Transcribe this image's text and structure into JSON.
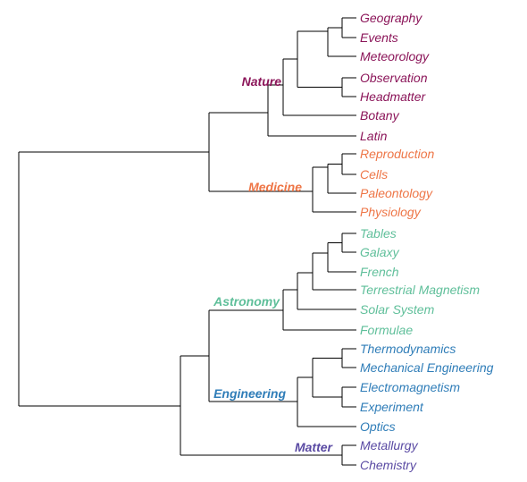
{
  "groups": [
    {
      "key": "nature",
      "label": "Nature",
      "color": "#8b1559"
    },
    {
      "key": "medicine",
      "label": "Medicine",
      "color": "#ee7647"
    },
    {
      "key": "astronomy",
      "label": "Astronomy",
      "color": "#5fbf9a"
    },
    {
      "key": "engineering",
      "label": "Engineering",
      "color": "#2f7db8"
    },
    {
      "key": "matter",
      "label": "Matter",
      "color": "#5a4aa3"
    }
  ],
  "leaves": [
    {
      "label": "Geography",
      "group": "nature"
    },
    {
      "label": "Events",
      "group": "nature"
    },
    {
      "label": "Meteorology",
      "group": "nature"
    },
    {
      "label": "Observation",
      "group": "nature"
    },
    {
      "label": "Headmatter",
      "group": "nature"
    },
    {
      "label": "Botany",
      "group": "nature"
    },
    {
      "label": "Latin",
      "group": "nature"
    },
    {
      "label": "Reproduction",
      "group": "medicine"
    },
    {
      "label": "Cells",
      "group": "medicine"
    },
    {
      "label": "Paleontology",
      "group": "medicine"
    },
    {
      "label": "Physiology",
      "group": "medicine"
    },
    {
      "label": "Tables",
      "group": "astronomy"
    },
    {
      "label": "Galaxy",
      "group": "astronomy"
    },
    {
      "label": "French",
      "group": "astronomy"
    },
    {
      "label": "Terrestrial Magnetism",
      "group": "astronomy"
    },
    {
      "label": "Solar System",
      "group": "astronomy"
    },
    {
      "label": "Formulae",
      "group": "astronomy"
    },
    {
      "label": "Thermodynamics",
      "group": "engineering"
    },
    {
      "label": "Mechanical Engineering",
      "group": "engineering"
    },
    {
      "label": "Electromagnetism",
      "group": "engineering"
    },
    {
      "label": "Experiment",
      "group": "engineering"
    },
    {
      "label": "Optics",
      "group": "engineering"
    },
    {
      "label": "Metallurgy",
      "group": "matter"
    },
    {
      "label": "Chemistry",
      "group": "matter"
    }
  ],
  "line_color": "#000000"
}
